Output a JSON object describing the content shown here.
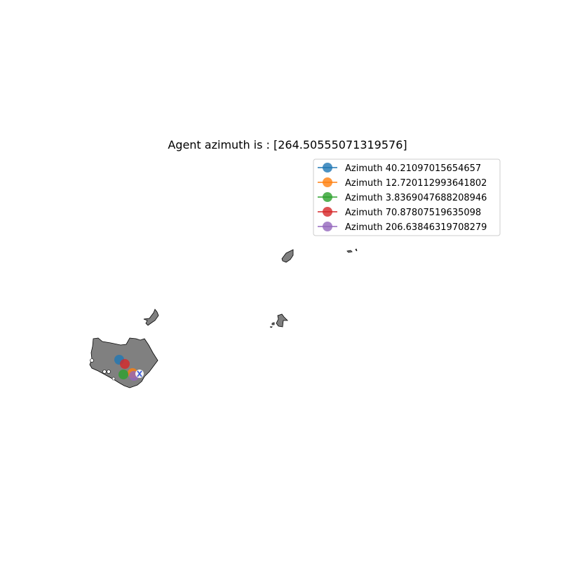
{
  "title": "Agent azimuth is : [264.50555071319576]",
  "colors": {
    "land": "#808080",
    "outline": "#000000",
    "agent": "#3b5bdb"
  },
  "legend": {
    "placement": "upper-right",
    "items": [
      {
        "label": "Azimuth 40.21097015654657",
        "color": "#1f77b4"
      },
      {
        "label": "Azimuth 12.720112993641802",
        "color": "#ff7f0e"
      },
      {
        "label": "Azimuth 3.8369047688208946",
        "color": "#2ca02c"
      },
      {
        "label": "Azimuth 70.87807519635098",
        "color": "#d62728"
      },
      {
        "label": "Azimuth 206.63846319708279",
        "color": "#9467bd"
      }
    ]
  },
  "agent": {
    "icon": "x-marker-icon"
  }
}
